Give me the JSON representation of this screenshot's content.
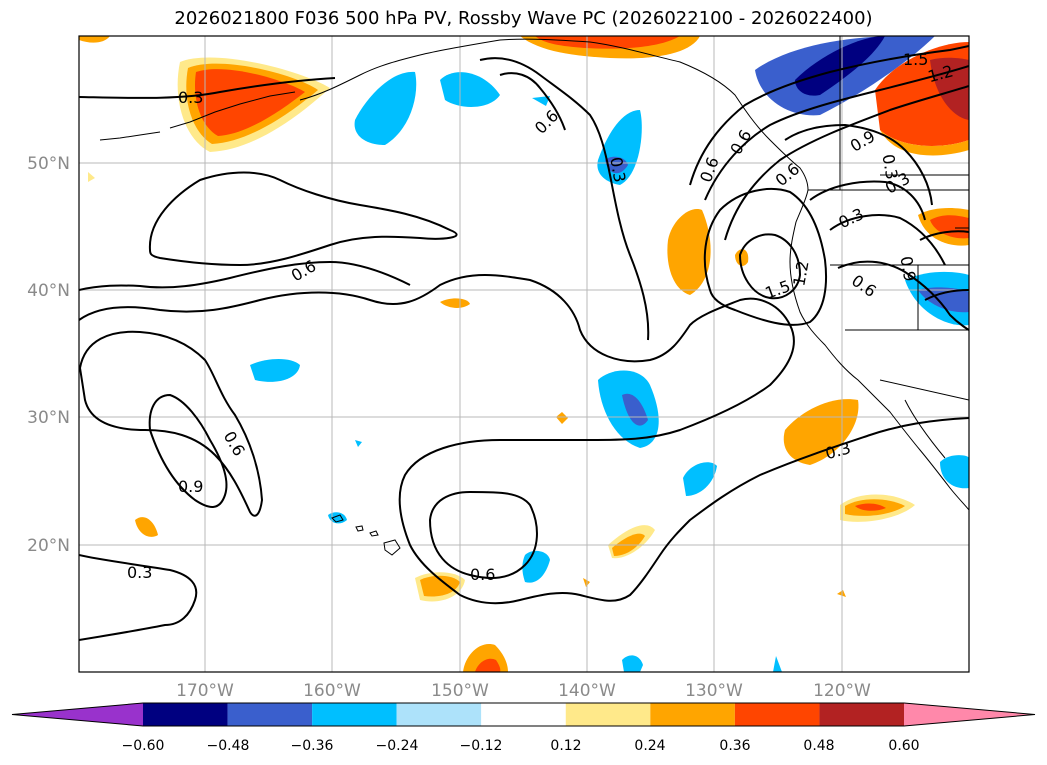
{
  "title": "2026021800 F036 500 hPa PV, Rossby Wave PC (2026022100 - 2026022400)",
  "map": {
    "lat_ticks": [
      "50°N",
      "40°N",
      "30°N",
      "20°N"
    ],
    "lon_ticks": [
      "170°W",
      "160°W",
      "150°W",
      "140°W",
      "130°W",
      "120°W"
    ],
    "contour_labels": [
      "0.3",
      "0.6",
      "0.6",
      "0.9",
      "0.6",
      "0.3",
      "0.6",
      "0.6",
      "0.3",
      "0.6",
      "1.5",
      "1.2",
      "0.9",
      "0.3",
      "1.2",
      "1.5",
      "0.6",
      "0.9",
      "0.3",
      "0.6",
      "0.3",
      "0.3"
    ],
    "shading_colors": {
      "light_yellow": "#ffe98a",
      "orange": "#ffa500",
      "red_orange": "#ff4500",
      "dark_red": "#b22222",
      "light_blue": "#ade2fa",
      "deep_sky_blue": "#00bfff",
      "royal_blue": "#3a5fcd",
      "navy": "#000080"
    }
  },
  "colorbar": {
    "ticks": [
      "−0.60",
      "−0.48",
      "−0.36",
      "−0.24",
      "−0.12",
      "0.12",
      "0.24",
      "0.36",
      "0.48",
      "0.60"
    ],
    "colors": [
      "#9932cc",
      "#000080",
      "#3a5fcd",
      "#00bfff",
      "#ade2fa",
      "#ffffff",
      "#ffe98a",
      "#ffa500",
      "#ff4500",
      "#b22222",
      "#ff88aa"
    ]
  }
}
